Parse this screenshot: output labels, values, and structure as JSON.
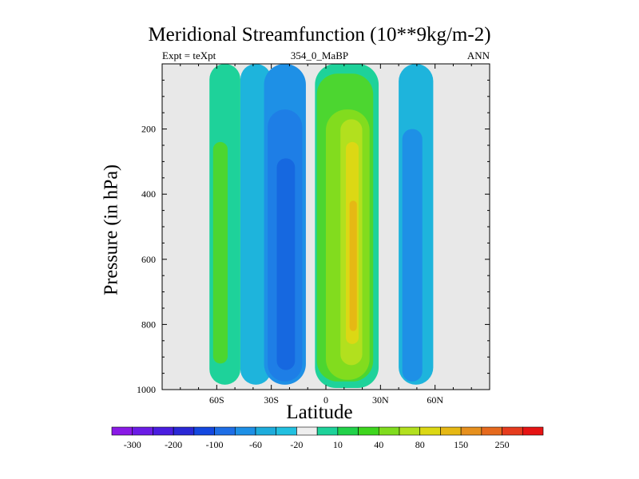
{
  "chart_data": {
    "type": "contour",
    "title": "Meridional Streamfunction (10**9kg/m-2)",
    "subtitle_left": "Expt = teXpt",
    "subtitle_center": "354_0_MaBP",
    "subtitle_right": "ANN",
    "xlabel": "Latitude",
    "ylabel": "Pressure (in hPa)",
    "xlim": [
      -90,
      90
    ],
    "ylim": [
      1000,
      0
    ],
    "x_ticks": [
      {
        "value": -60,
        "label": "60S"
      },
      {
        "value": -30,
        "label": "30S"
      },
      {
        "value": 0,
        "label": "0"
      },
      {
        "value": 30,
        "label": "30N"
      },
      {
        "value": 60,
        "label": "60N"
      }
    ],
    "y_ticks": [
      {
        "value": 200,
        "label": "200"
      },
      {
        "value": 400,
        "label": "400"
      },
      {
        "value": 600,
        "label": "600"
      },
      {
        "value": 800,
        "label": "800"
      },
      {
        "value": 1000,
        "label": "1000"
      }
    ],
    "missing_color": "#e8e8e8",
    "colorbar": {
      "levels": [
        -300,
        -250,
        -200,
        -150,
        -100,
        -80,
        -60,
        -40,
        -20,
        -10,
        10,
        20,
        40,
        60,
        80,
        100,
        150,
        200,
        250,
        300
      ],
      "labels": [
        "-300",
        "-200",
        "-100",
        "-60",
        "-20",
        "10",
        "40",
        "80",
        "150",
        "250"
      ],
      "colors": [
        "#8a1ae6",
        "#6b1ce6",
        "#4a1de0",
        "#2a28d6",
        "#1448e0",
        "#1e6ee6",
        "#1e90e6",
        "#1eacdc",
        "#22c0e0",
        "#eeeeee",
        "#1ed29a",
        "#22d24a",
        "#3ed61e",
        "#80dc1e",
        "#b2e01e",
        "#dcd814",
        "#e6b814",
        "#e6901e",
        "#e66a1e",
        "#e63c1e",
        "#e61414"
      ]
    },
    "fields": [
      {
        "level": -10,
        "color": "#1eb4dc",
        "x": [
          -47,
          -30
        ],
        "p": [
          0,
          985
        ]
      },
      {
        "level": -10,
        "color": "#1eb4dc",
        "x": [
          40,
          59
        ],
        "p": [
          0,
          985
        ]
      },
      {
        "level": -20,
        "color": "#1e90e6",
        "x": [
          -34,
          -11
        ],
        "p": [
          0,
          985
        ]
      },
      {
        "level": -20,
        "color": "#1e90e6",
        "x": [
          42,
          53
        ],
        "p": [
          200,
          975
        ]
      },
      {
        "level": -40,
        "color": "#1e7ee6",
        "x": [
          -32,
          -13
        ],
        "p": [
          140,
          975
        ]
      },
      {
        "level": -60,
        "color": "#1668e0",
        "x": [
          -27,
          -17
        ],
        "p": [
          290,
          940
        ]
      },
      {
        "level": 10,
        "color": "#1ed29a",
        "x": [
          -64,
          -47
        ],
        "p": [
          0,
          985
        ]
      },
      {
        "level": 10,
        "color": "#1ed29a",
        "x": [
          -6,
          29
        ],
        "p": [
          0,
          995
        ]
      },
      {
        "level": 20,
        "color": "#4cd630",
        "x": [
          -62,
          -54
        ],
        "p": [
          240,
          920
        ]
      },
      {
        "level": 20,
        "color": "#4cd630",
        "x": [
          -5,
          26
        ],
        "p": [
          30,
          975
        ]
      },
      {
        "level": 40,
        "color": "#82dc1e",
        "x": [
          0,
          24
        ],
        "p": [
          140,
          970
        ]
      },
      {
        "level": 60,
        "color": "#b2e01e",
        "x": [
          8,
          20
        ],
        "p": [
          170,
          925
        ]
      },
      {
        "level": 80,
        "color": "#dcd814",
        "x": [
          11,
          18
        ],
        "p": [
          240,
          860
        ]
      },
      {
        "level": 100,
        "color": "#e6b814",
        "x": [
          13,
          17
        ],
        "p": [
          420,
          820
        ]
      }
    ]
  }
}
